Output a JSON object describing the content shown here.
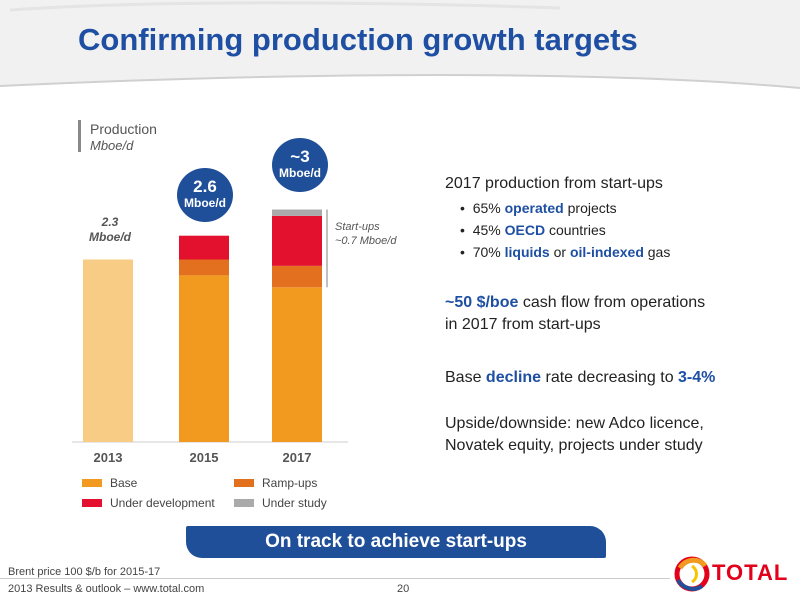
{
  "slide": {
    "title": "Confirming production growth targets",
    "footnote": "Brent price 100 $/b for 2015-17",
    "footer": "2013 Results & outlook – www.total.com",
    "page_number": "20",
    "brand": "TOTAL"
  },
  "banner": "On track to achieve start-ups",
  "chart_data": {
    "type": "bar",
    "stacked": true,
    "title": "Production",
    "ylabel": "Mboe/d",
    "categories": [
      "2013",
      "2015",
      "2017"
    ],
    "series": [
      {
        "name": "Base",
        "color": "#F29A1F",
        "values": [
          2.3,
          2.1,
          1.95
        ]
      },
      {
        "name": "Ramp-ups",
        "color": "#E2701E",
        "values": [
          0,
          0.2,
          0.27
        ]
      },
      {
        "name": "Under development",
        "color": "#E3112E",
        "values": [
          0,
          0.3,
          0.63
        ]
      },
      {
        "name": "Under study",
        "color": "#AAAAAA",
        "values": [
          0,
          0,
          0.08
        ]
      }
    ],
    "base_2013_color": "#F9CC85",
    "ylim": [
      0,
      3.05
    ],
    "totals": [
      {
        "value": "2.3",
        "unit": "Mboe/d",
        "style": "text"
      },
      {
        "value": "2.6",
        "unit": "Mboe/d",
        "style": "bubble"
      },
      {
        "value": "~3",
        "unit": "Mboe/d",
        "style": "bubble"
      }
    ],
    "annotation": {
      "line1": "Start-ups",
      "line2": "~0.7 Mboe/d"
    },
    "legend": [
      {
        "label": "Base",
        "color": "#F29A1F"
      },
      {
        "label": "Ramp-ups",
        "color": "#E2701E"
      },
      {
        "label": "Under development",
        "color": "#E3112E"
      },
      {
        "label": "Under study",
        "color": "#AAAAAA"
      }
    ]
  },
  "right_panel": {
    "heading": "2017 production from start-ups",
    "bullets": [
      {
        "pre": "65% ",
        "bold": "operated",
        "mid": " projects",
        "bold2": "",
        "post": ""
      },
      {
        "pre": "45% ",
        "bold": "OECD",
        "mid": " countries",
        "bold2": "",
        "post": ""
      },
      {
        "pre": "70% ",
        "bold": "liquids",
        "mid": " or ",
        "bold2": "oil-indexed",
        "post": " gas"
      }
    ],
    "cashflow": {
      "bold": "~50 $/boe",
      "rest1": " cash flow from operations",
      "rest2": "in 2017 from start-ups"
    },
    "decline": {
      "pre": "Base ",
      "bold": "decline",
      "mid": " rate decreasing to ",
      "bold2": "3-4%"
    },
    "upside": {
      "line1": "Upside/downside: new Adco licence,",
      "line2": "Novatek equity, projects under study"
    }
  }
}
